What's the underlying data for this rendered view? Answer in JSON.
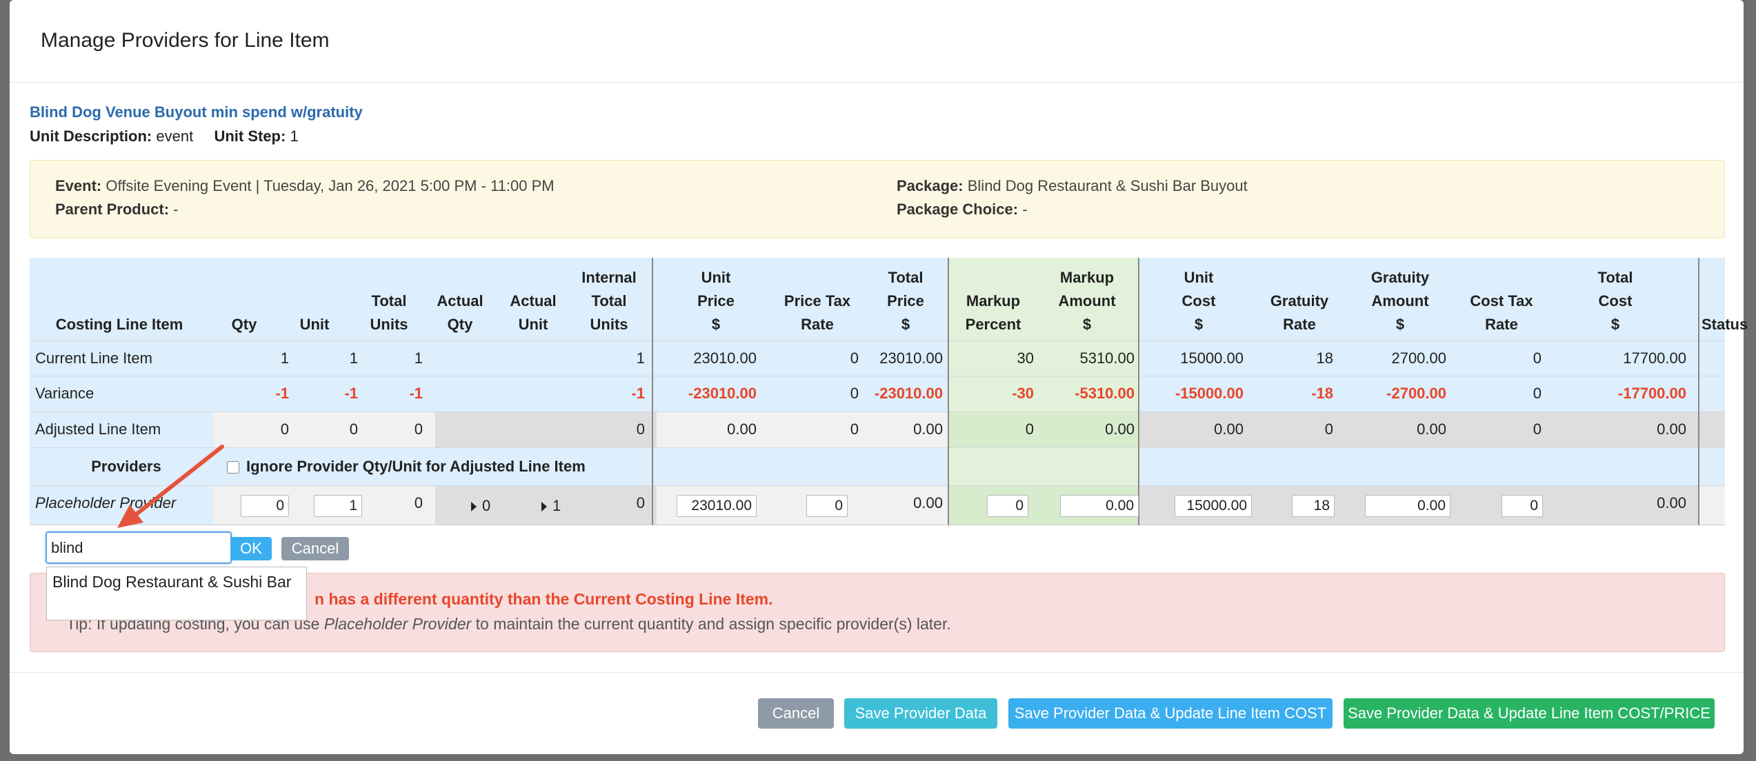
{
  "modal": {
    "title": "Manage Providers for Line Item"
  },
  "item": {
    "title": "Blind Dog Venue Buyout min spend w/gratuity",
    "unit_description_label": "Unit Description:",
    "unit_description": "event",
    "unit_step_label": "Unit Step:",
    "unit_step": "1"
  },
  "info": {
    "event_label": "Event:",
    "event": "Offsite Evening Event | Tuesday, Jan 26, 2021 5:00 PM - 11:00 PM",
    "parent_label": "Parent Product:",
    "parent": "-",
    "package_label": "Package:",
    "package": "Blind Dog Restaurant & Sushi Bar Buyout",
    "choice_label": "Package Choice:",
    "choice": "-"
  },
  "table": {
    "headers": {
      "costing": "Costing Line Item",
      "qty": "Qty",
      "unit": "Unit",
      "total_units": [
        "Total",
        "Units"
      ],
      "actual_qty": [
        "Actual",
        "Qty"
      ],
      "actual_unit": [
        "Actual",
        "Unit"
      ],
      "internal_total_units": [
        "Internal",
        "Total",
        "Units"
      ],
      "unit_price": [
        "Unit",
        "Price",
        "$"
      ],
      "price_tax_rate": [
        "Price Tax",
        "Rate"
      ],
      "total_price": [
        "Total",
        "Price",
        "$"
      ],
      "markup_percent": [
        "Markup",
        "Percent"
      ],
      "markup_amount": [
        "Markup",
        "Amount",
        "$"
      ],
      "unit_cost": [
        "Unit",
        "Cost",
        "$"
      ],
      "gratuity_rate": [
        "Gratuity",
        "Rate"
      ],
      "gratuity_amount": [
        "Gratuity",
        "Amount",
        "$"
      ],
      "cost_tax_rate": [
        "Cost Tax",
        "Rate"
      ],
      "total_cost": [
        "Total",
        "Cost",
        "$"
      ],
      "status": "Status"
    },
    "current": {
      "label": "Current Line Item",
      "qty": "1",
      "unit": "1",
      "total_units": "1",
      "internal": "1",
      "unit_price": "23010.00",
      "price_tax": "0",
      "total_price": "23010.00",
      "markup_pct": "30",
      "markup_amt": "5310.00",
      "unit_cost": "15000.00",
      "grat_rate": "18",
      "grat_amt": "2700.00",
      "cost_tax": "0",
      "total_cost": "17700.00"
    },
    "variance": {
      "label": "Variance",
      "qty": "-1",
      "unit": "-1",
      "total_units": "-1",
      "internal": "-1",
      "unit_price": "-23010.00",
      "price_tax": "0",
      "total_price": "-23010.00",
      "markup_pct": "-30",
      "markup_amt": "-5310.00",
      "unit_cost": "-15000.00",
      "grat_rate": "-18",
      "grat_amt": "-2700.00",
      "cost_tax": "0",
      "total_cost": "-17700.00"
    },
    "adjusted": {
      "label": "Adjusted Line Item",
      "qty": "0",
      "unit": "0",
      "total_units": "0",
      "internal": "0",
      "unit_price": "0.00",
      "price_tax": "0",
      "total_price": "0.00",
      "markup_pct": "0",
      "markup_amt": "0.00",
      "unit_cost": "0.00",
      "grat_rate": "0",
      "grat_amt": "0.00",
      "cost_tax": "0",
      "total_cost": "0.00"
    },
    "providers": {
      "label": "Providers",
      "ignore_label": "Ignore Provider Qty/Unit for Adjusted Line Item"
    },
    "placeholder": {
      "label": "Placeholder Provider",
      "qty": "0",
      "unit": "1",
      "total_units": "0",
      "actual_qty": "0",
      "actual_unit": "1",
      "internal": "0",
      "unit_price": "23010.00",
      "price_tax": "0",
      "total_price": "0.00",
      "markup_pct": "0",
      "markup_amt": "0.00",
      "unit_cost": "15000.00",
      "grat_rate": "18",
      "grat_amt": "0.00",
      "cost_tax": "0",
      "total_cost": "0.00"
    }
  },
  "search": {
    "value": "blind",
    "ok_label": "OK",
    "cancel_label": "Cancel",
    "suggestion": "Blind Dog Restaurant & Sushi Bar"
  },
  "alert": {
    "message": "n has a different quantity than the Current Costing Line Item.",
    "tip_prefix": "Tip: If updating costing, you can use ",
    "tip_em": "Placeholder Provider",
    "tip_suffix": " to maintain the current quantity and assign specific provider(s) later."
  },
  "footer": {
    "cancel": "Cancel",
    "save": "Save Provider Data",
    "save_cost": "Save Provider Data & Update Line Item COST",
    "save_cost_price": "Save Provider Data & Update Line Item COST/PRICE"
  },
  "colors": {
    "header_blue": "#ddeefc",
    "markup_green": "#e2f2da",
    "title_blue": "#2a6aad",
    "variance_red": "#e8462a",
    "btn_cancel": "#8e9aa8",
    "btn_save": "#3ebfd8",
    "btn_save_cost": "#3aaeef",
    "btn_save_cost_price": "#28b463"
  }
}
